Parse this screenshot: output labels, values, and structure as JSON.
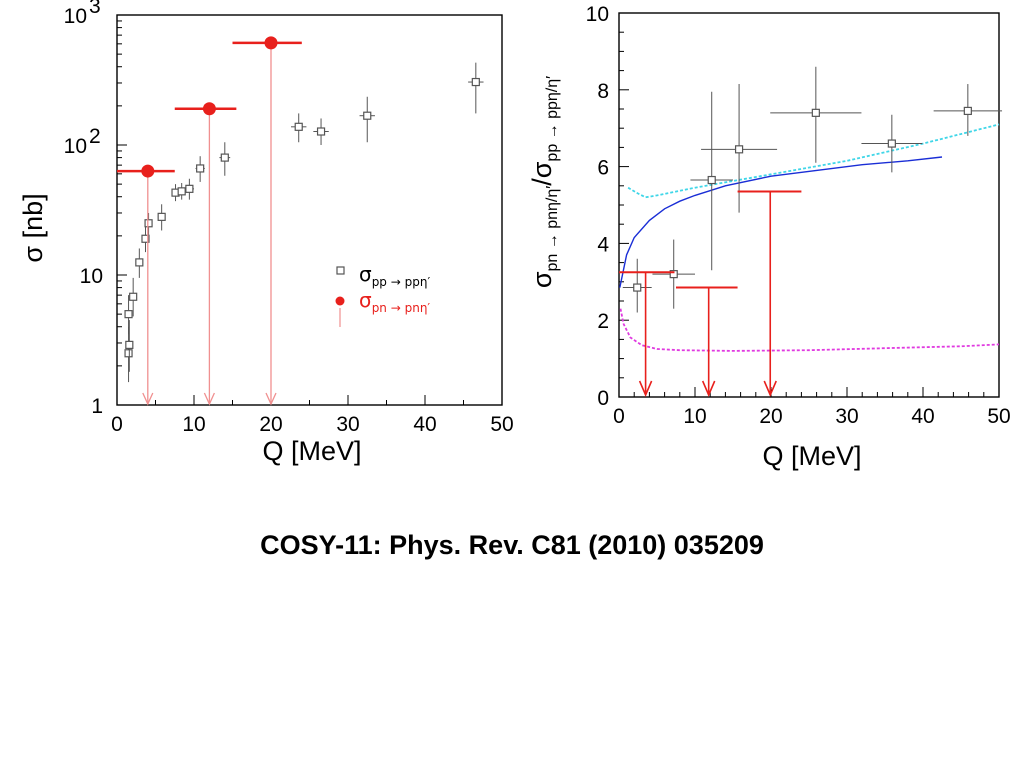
{
  "caption": "COSY-11: Phys. Rev. C81 (2010) 035209",
  "colors": {
    "pp": "#555555",
    "pn": "#e8201c",
    "pn_arrow_left": "#f09090",
    "theory_solid": "#1a2ed6",
    "theory_cyan": "#3fd6e8",
    "theory_magenta": "#e03ae0"
  },
  "chart_data": [
    {
      "type": "scatter",
      "yscale": "log",
      "xlabel": "Q [MeV]",
      "ylabel": "σ [nb]",
      "xlim": [
        0,
        50
      ],
      "ylim": [
        1,
        1000
      ],
      "xticks": [
        "0",
        "10",
        "20",
        "30",
        "40",
        "50"
      ],
      "yticks": [
        {
          "value": 1,
          "base": "1",
          "exp": ""
        },
        {
          "value": 10,
          "base": "10",
          "exp": ""
        },
        {
          "value": 100,
          "base": "10",
          "exp": "2"
        },
        {
          "value": 1000,
          "base": "10",
          "exp": "3"
        }
      ],
      "legend": [
        {
          "name_base": "σ",
          "name_sub": "pp → ppη′",
          "marker": "open-square"
        },
        {
          "name_base": "σ",
          "name_sub": "pn → pnη′",
          "marker": "filled-circle"
        }
      ],
      "series": [
        {
          "name": "σ pp → ppη′",
          "marker": "open-square",
          "points": [
            {
              "x": 1.5,
              "y": 2.5,
              "ylo": 1.5,
              "yhi": 4.0,
              "xerr": 0.3
            },
            {
              "x": 1.5,
              "y": 5.0,
              "ylo": 3.5,
              "yhi": 7.0,
              "xerr": 0.3
            },
            {
              "x": 1.6,
              "y": 2.9,
              "ylo": 1.8,
              "yhi": 4.5,
              "xerr": 0.3
            },
            {
              "x": 2.1,
              "y": 6.8,
              "ylo": 4.8,
              "yhi": 9.5,
              "xerr": 0.3
            },
            {
              "x": 2.9,
              "y": 12.5,
              "ylo": 9.5,
              "yhi": 16.0,
              "xerr": 0.3
            },
            {
              "x": 3.7,
              "y": 19.0,
              "ylo": 15.0,
              "yhi": 24.0,
              "xerr": 0.4
            },
            {
              "x": 4.1,
              "y": 25.0,
              "ylo": 20.0,
              "yhi": 30.0,
              "xerr": 0.4
            },
            {
              "x": 5.8,
              "y": 28.0,
              "ylo": 22.0,
              "yhi": 35.0,
              "xerr": 0.5
            },
            {
              "x": 7.6,
              "y": 43.0,
              "ylo": 37.0,
              "yhi": 50.0,
              "xerr": 0.5
            },
            {
              "x": 8.4,
              "y": 44.0,
              "ylo": 38.0,
              "yhi": 51.0,
              "xerr": 0.5
            },
            {
              "x": 9.4,
              "y": 46.0,
              "ylo": 38.0,
              "yhi": 55.0,
              "xerr": 0.6
            },
            {
              "x": 10.8,
              "y": 66.0,
              "ylo": 52.0,
              "yhi": 82.0,
              "xerr": 0.6
            },
            {
              "x": 14.0,
              "y": 80.0,
              "ylo": 58.0,
              "yhi": 105.0,
              "xerr": 0.7
            },
            {
              "x": 23.6,
              "y": 138.0,
              "ylo": 105.0,
              "yhi": 175.0,
              "xerr": 1.0
            },
            {
              "x": 26.5,
              "y": 127.0,
              "ylo": 100.0,
              "yhi": 160.0,
              "xerr": 1.0
            },
            {
              "x": 32.5,
              "y": 168.0,
              "ylo": 105.0,
              "yhi": 235.0,
              "xerr": 1.0
            },
            {
              "x": 46.6,
              "y": 305.0,
              "ylo": 175.0,
              "yhi": 430.0,
              "xerr": 1.0
            }
          ]
        },
        {
          "name": "σ pn → pnη′",
          "marker": "filled-circle",
          "points": [
            {
              "x": 4.0,
              "y": 63.0,
              "xlo": 0.0,
              "xhi": 7.5
            },
            {
              "x": 12.0,
              "y": 190.0,
              "xlo": 7.5,
              "xhi": 15.5
            },
            {
              "x": 20.0,
              "y": 610.0,
              "xlo": 15.0,
              "xhi": 24.0
            }
          ]
        }
      ]
    },
    {
      "type": "scatter",
      "xlabel": "Q [MeV]",
      "ylabel": "σ pn → pnη/η′ / σ pp → ppη/η′",
      "ylabel_parts": {
        "s1": "σ",
        "sub1": "pn → pnη/η′",
        "sep": "/",
        "s2": "σ",
        "sub2": "pp → ppη/η′"
      },
      "xlim": [
        0,
        50
      ],
      "ylim": [
        0,
        10
      ],
      "xticks": [
        "0",
        "10",
        "20",
        "30",
        "40",
        "50"
      ],
      "yticks": [
        "0",
        "2",
        "4",
        "6",
        "8",
        "10"
      ],
      "series": [
        {
          "name": "data",
          "marker": "open-square",
          "points": [
            {
              "x": 2.4,
              "y": 2.85,
              "xerr": 1.9,
              "ylo": 2.2,
              "yhi": 3.6
            },
            {
              "x": 7.2,
              "y": 3.2,
              "xerr": 2.8,
              "ylo": 2.3,
              "yhi": 4.1
            },
            {
              "x": 12.2,
              "y": 5.65,
              "xerr": 2.8,
              "ylo": 3.3,
              "yhi": 7.95
            },
            {
              "x": 15.8,
              "y": 6.45,
              "xerr": 5.0,
              "ylo": 4.8,
              "yhi": 8.15
            },
            {
              "x": 25.9,
              "y": 7.4,
              "xerr": 6.0,
              "ylo": 6.1,
              "yhi": 8.6
            },
            {
              "x": 35.9,
              "y": 6.6,
              "xerr": 4.0,
              "ylo": 5.85,
              "yhi": 7.35
            },
            {
              "x": 45.9,
              "y": 7.45,
              "xerr": 4.5,
              "ylo": 6.8,
              "yhi": 8.15
            }
          ]
        },
        {
          "name": "upper limits",
          "marker": "T-arrow",
          "points": [
            {
              "x": 3.5,
              "y": 3.25,
              "xlo": 0.0,
              "xhi": 7.3
            },
            {
              "x": 11.8,
              "y": 2.85,
              "xlo": 7.5,
              "xhi": 15.6
            },
            {
              "x": 19.9,
              "y": 5.35,
              "xlo": 15.6,
              "xhi": 24.0
            }
          ]
        },
        {
          "name": "solid curve",
          "line": "solid",
          "points": [
            [
              0.1,
              2.85
            ],
            [
              1,
              3.7
            ],
            [
              2,
              4.15
            ],
            [
              4,
              4.6
            ],
            [
              6,
              4.9
            ],
            [
              8,
              5.1
            ],
            [
              10,
              5.25
            ],
            [
              14,
              5.5
            ],
            [
              20,
              5.75
            ],
            [
              26,
              5.9
            ],
            [
              32,
              6.05
            ],
            [
              38,
              6.15
            ],
            [
              42.5,
              6.25
            ]
          ]
        },
        {
          "name": "cyan dotted curve",
          "line": "dotted",
          "points": [
            [
              1.2,
              5.45
            ],
            [
              2.5,
              5.3
            ],
            [
              3.5,
              5.2
            ],
            [
              5,
              5.25
            ],
            [
              10,
              5.45
            ],
            [
              20,
              5.8
            ],
            [
              30,
              6.15
            ],
            [
              40,
              6.6
            ],
            [
              50,
              7.1
            ]
          ]
        },
        {
          "name": "magenta dotted curve",
          "line": "dotted",
          "points": [
            [
              0.2,
              2.3
            ],
            [
              0.6,
              1.9
            ],
            [
              1.5,
              1.55
            ],
            [
              3,
              1.35
            ],
            [
              5,
              1.25
            ],
            [
              8,
              1.22
            ],
            [
              15,
              1.2
            ],
            [
              25,
              1.22
            ],
            [
              35,
              1.27
            ],
            [
              45,
              1.32
            ],
            [
              50,
              1.37
            ]
          ]
        }
      ]
    }
  ]
}
